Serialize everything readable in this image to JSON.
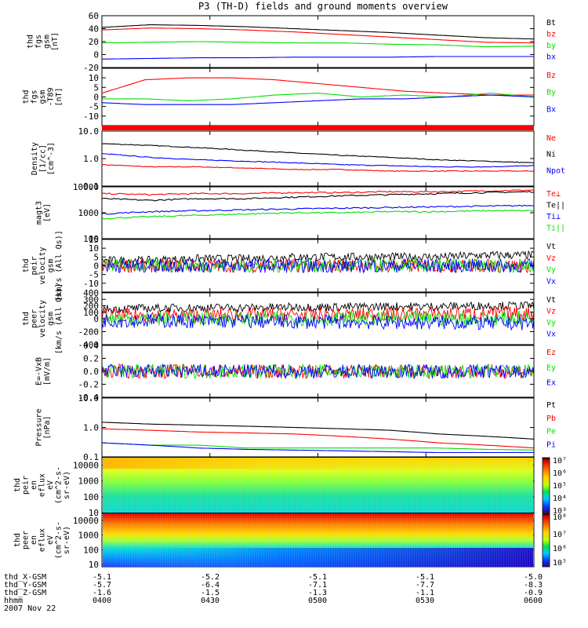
{
  "title": "P3 (TH-D) fields and ground moments overview",
  "date_label": "2007 Nov 22",
  "colors": {
    "black": "#000000",
    "red": "#ff0000",
    "green": "#00e000",
    "blue": "#0000ff"
  },
  "time_axis": {
    "ticks": [
      "0400",
      "0430",
      "0500",
      "0530",
      "0600"
    ],
    "rows": [
      {
        "label": "thd_X-GSM",
        "values": [
          "-5.1",
          "-5.2",
          "-5.1",
          "-5.1",
          "-5.0"
        ]
      },
      {
        "label": "thd_Y-GSM",
        "values": [
          "-5.7",
          "-6.4",
          "-7.1",
          "-7.7",
          "-8.3"
        ]
      },
      {
        "label": "thd_Z-GSM",
        "values": [
          "-1.6",
          "-1.5",
          "-1.3",
          "-1.1",
          "-0.9"
        ]
      },
      {
        "label": "hhmm",
        "values": [
          "0400",
          "0430",
          "0500",
          "0530",
          "0600"
        ]
      }
    ]
  },
  "colorbars": [
    {
      "labels": [
        "10⁷",
        "10⁶",
        "10⁵",
        "10⁴",
        "10³"
      ]
    },
    {
      "labels": [
        "10⁸",
        "10⁷",
        "10⁶",
        "10⁵"
      ]
    }
  ],
  "chart_data": [
    {
      "type": "line",
      "ylabel": [
        "thd",
        "fgs",
        "gsm",
        "[nT]"
      ],
      "scale": "linear",
      "ylim": [
        -20,
        60
      ],
      "ticks": [
        "60",
        "40",
        "20",
        "0",
        "-20"
      ],
      "series": [
        {
          "name": "Bt",
          "color": "black",
          "values": [
            42,
            46,
            45,
            43,
            40,
            37,
            34,
            30,
            26,
            24
          ]
        },
        {
          "name": "bz",
          "color": "red",
          "values": [
            38,
            41,
            40,
            38,
            35,
            31,
            27,
            23,
            19,
            18
          ]
        },
        {
          "name": "by",
          "color": "green",
          "values": [
            18,
            19,
            20,
            19,
            18,
            18,
            16,
            15,
            12,
            13
          ]
        },
        {
          "name": "bx",
          "color": "blue",
          "values": [
            -7,
            -6,
            -5,
            -5,
            -4,
            -4,
            -4,
            -3,
            -3,
            -3
          ]
        }
      ]
    },
    {
      "type": "line",
      "ylabel": [
        "thd",
        "fgs",
        "gsm",
        "-T89",
        "[nT]"
      ],
      "scale": "linear",
      "ylim": [
        -15,
        15
      ],
      "ticks": [
        "10",
        "5",
        "0",
        "-5",
        "-10"
      ],
      "series": [
        {
          "name": "Bz",
          "color": "red",
          "values": [
            2,
            9,
            10,
            10,
            9,
            7,
            5,
            3,
            2,
            1,
            1
          ]
        },
        {
          "name": "By",
          "color": "green",
          "values": [
            -1,
            -1,
            -2,
            -1,
            1,
            2,
            0,
            1,
            0,
            2,
            0
          ]
        },
        {
          "name": "Bx",
          "color": "blue",
          "values": [
            -3,
            -4,
            -4,
            -4,
            -3,
            -2,
            -1,
            -1,
            0,
            1,
            0
          ]
        }
      ]
    },
    {
      "type": "line",
      "ylabel": [
        "Density",
        "[1/cc]",
        "[cm^-3]"
      ],
      "scale": "log",
      "ylim": [
        0.1,
        10
      ],
      "ticks": [
        "10.0",
        "1.0",
        "0.1"
      ],
      "series": [
        {
          "name": "Ne",
          "color": "red",
          "values": [
            0.6,
            0.5,
            0.5,
            0.45,
            0.4,
            0.4,
            0.35,
            0.35,
            0.35,
            0.35
          ]
        },
        {
          "name": "Ni",
          "color": "black",
          "values": [
            3.5,
            3,
            2.5,
            2,
            1.6,
            1.3,
            1.1,
            0.9,
            0.8,
            0.7
          ]
        },
        {
          "name": "Npot",
          "color": "blue",
          "values": [
            1.5,
            1.1,
            0.9,
            0.8,
            0.7,
            0.6,
            0.55,
            0.5,
            0.5,
            0.55
          ]
        }
      ]
    },
    {
      "type": "line",
      "ylabel": [
        "magt3",
        "[eV]"
      ],
      "scale": "log",
      "ylim": [
        100,
        10000
      ],
      "ticks": [
        "10000",
        "1000",
        "100"
      ],
      "series": [
        {
          "name": "Te⊥",
          "color": "red",
          "values": [
            5500,
            5000,
            5500,
            5500,
            6000,
            6000,
            6500,
            6500,
            7000,
            7500
          ]
        },
        {
          "name": "Te||",
          "color": "black",
          "values": [
            3500,
            3000,
            3500,
            3500,
            4000,
            4500,
            5000,
            5500,
            6000,
            6500
          ]
        },
        {
          "name": "Ti⊥",
          "color": "blue",
          "values": [
            900,
            1100,
            1200,
            1300,
            1400,
            1500,
            1600,
            1700,
            1800,
            1900
          ]
        },
        {
          "name": "Ti||",
          "color": "green",
          "values": [
            600,
            700,
            800,
            900,
            1000,
            1000,
            1100,
            1100,
            1200,
            1200
          ]
        }
      ]
    },
    {
      "type": "line",
      "ylabel": [
        "thd",
        "peir",
        "velocity",
        "gsm",
        "[km/s (All Qs)]"
      ],
      "scale": "linear",
      "ylim": [
        -15,
        15
      ],
      "ticks": [
        "15",
        "10",
        "5",
        "0",
        "-5",
        "-10"
      ],
      "series": [
        {
          "name": "Vt",
          "color": "black",
          "values": [
            3,
            3,
            4,
            4,
            5,
            5,
            5,
            5,
            6,
            6
          ]
        },
        {
          "name": "Vz",
          "color": "red",
          "values": [
            0,
            0,
            0,
            0,
            0,
            0,
            0,
            0,
            0,
            0
          ]
        },
        {
          "name": "Vy",
          "color": "green",
          "values": [
            0,
            0,
            0,
            0,
            0,
            0,
            0,
            0,
            0,
            0
          ]
        },
        {
          "name": "Vx",
          "color": "blue",
          "values": [
            0,
            0,
            0,
            0,
            0,
            0,
            0,
            0,
            0,
            0
          ]
        }
      ]
    },
    {
      "type": "line",
      "ylabel": [
        "thd",
        "peer",
        "velocity",
        "gsm",
        "[km/s (All Qs)]"
      ],
      "scale": "linear",
      "ylim": [
        -400,
        400
      ],
      "ticks": [
        "400",
        "300",
        "200",
        "100",
        "0",
        "-200",
        "-400"
      ],
      "series": [
        {
          "name": "Vt",
          "color": "black",
          "values": [
            150,
            160,
            170,
            170,
            180,
            180,
            190,
            190,
            200,
            200
          ]
        },
        {
          "name": "Vz",
          "color": "red",
          "values": [
            50,
            50,
            50,
            60,
            60,
            60,
            70,
            70,
            80,
            80
          ]
        },
        {
          "name": "Vy",
          "color": "green",
          "values": [
            0,
            0,
            0,
            0,
            0,
            0,
            0,
            0,
            0,
            0
          ]
        },
        {
          "name": "Vx",
          "color": "blue",
          "values": [
            -30,
            -30,
            -40,
            -40,
            -50,
            -50,
            -60,
            -60,
            -70,
            -70
          ]
        }
      ]
    },
    {
      "type": "line",
      "ylabel": [
        "E=-VxB",
        "[mV/m]"
      ],
      "scale": "linear",
      "ylim": [
        -0.4,
        0.4
      ],
      "ticks": [
        "0.4",
        "0.2",
        "0.0",
        "-0.2",
        "-0.4"
      ],
      "series": [
        {
          "name": "Ez",
          "color": "red",
          "values": [
            0,
            0,
            0,
            0,
            0,
            0,
            0,
            0,
            0,
            0
          ]
        },
        {
          "name": "Ey",
          "color": "green",
          "values": [
            0,
            0,
            0,
            0,
            0,
            0,
            0,
            0,
            0,
            0
          ]
        },
        {
          "name": "Ex",
          "color": "blue",
          "values": [
            0,
            0,
            0,
            0,
            0,
            0,
            0,
            0,
            0,
            0
          ]
        }
      ]
    },
    {
      "type": "line",
      "ylabel": [
        "Pressure",
        "[nPa]"
      ],
      "scale": "log",
      "ylim": [
        0.1,
        10
      ],
      "ticks": [
        "10.0",
        "1.0",
        "0.1"
      ],
      "series": [
        {
          "name": "Pt",
          "color": "black",
          "values": [
            1.5,
            1.3,
            1.2,
            1.1,
            1,
            0.9,
            0.8,
            0.6,
            0.5,
            0.4
          ]
        },
        {
          "name": "Pb",
          "color": "red",
          "values": [
            0.9,
            0.8,
            0.7,
            0.65,
            0.6,
            0.5,
            0.4,
            0.3,
            0.25,
            0.2
          ]
        },
        {
          "name": "Pe",
          "color": "green",
          "values": [
            0.3,
            0.25,
            0.25,
            0.2,
            0.2,
            0.2,
            0.2,
            0.2,
            0.18,
            0.17
          ]
        },
        {
          "name": "Pi",
          "color": "blue",
          "values": [
            0.3,
            0.25,
            0.2,
            0.18,
            0.17,
            0.16,
            0.15,
            0.14,
            0.14,
            0.14
          ]
        }
      ]
    },
    {
      "type": "heatmap",
      "ylabel": [
        "thd",
        "peir",
        "en",
        "eflux",
        "eV",
        "(cm^2-s-",
        "sr-eV)"
      ],
      "scale": "log",
      "ylim": [
        10,
        30000
      ],
      "ticks": [
        "10000",
        "1000",
        "100",
        "10"
      ]
    },
    {
      "type": "heatmap",
      "ylabel": [
        "thd",
        "peer",
        "en",
        "eflux",
        "eV",
        "(cm^2-s-",
        "sr-eV)"
      ],
      "scale": "log",
      "ylim": [
        7,
        30000
      ],
      "ticks": [
        "10000",
        "1000",
        "100",
        "10"
      ]
    }
  ]
}
